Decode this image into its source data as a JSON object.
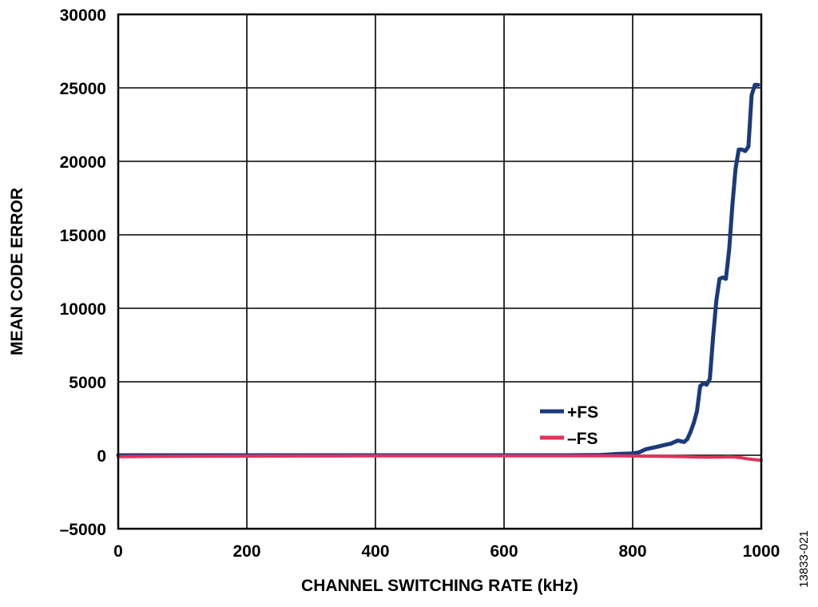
{
  "chart_data": {
    "type": "line",
    "title": "",
    "xlabel": "CHANNEL SWITCHING RATE (kHz)",
    "ylabel": "MEAN CODE ERROR",
    "xlim": [
      0,
      1000
    ],
    "ylim": [
      -5000,
      30000
    ],
    "xticks": [
      0,
      200,
      400,
      600,
      800,
      1000
    ],
    "xtick_labels": [
      "0",
      "200",
      "400",
      "600",
      "800",
      "1000"
    ],
    "yticks": [
      -5000,
      0,
      5000,
      10000,
      15000,
      20000,
      25000,
      30000
    ],
    "ytick_labels": [
      "–5000",
      "0",
      "5000",
      "10000",
      "15000",
      "20000",
      "25000",
      "30000"
    ],
    "grid": true,
    "legend_position": "lower-right (inside plot)",
    "figure_id": "13833-021",
    "series": [
      {
        "name": "+FS",
        "color": "#1b3a7a",
        "x": [
          0,
          50,
          100,
          200,
          300,
          400,
          500,
          600,
          650,
          700,
          750,
          780,
          800,
          810,
          820,
          830,
          840,
          850,
          860,
          865,
          870,
          875,
          880,
          885,
          890,
          895,
          900,
          905,
          910,
          915,
          920,
          925,
          930,
          935,
          940,
          945,
          950,
          955,
          960,
          965,
          970,
          975,
          980,
          985,
          990,
          995
        ],
        "y": [
          0,
          0,
          0,
          0,
          0,
          0,
          0,
          0,
          0,
          0,
          20,
          100,
          120,
          200,
          400,
          500,
          600,
          700,
          800,
          900,
          1000,
          950,
          900,
          1100,
          1600,
          2200,
          3000,
          4700,
          4900,
          4800,
          5200,
          8000,
          10500,
          12000,
          12100,
          12000,
          14000,
          17000,
          19500,
          20800,
          20800,
          20700,
          21000,
          24500,
          25200,
          25200
        ]
      },
      {
        "name": "–FS",
        "color": "#e0335a",
        "x": [
          0,
          100,
          200,
          300,
          400,
          500,
          600,
          650,
          700,
          750,
          780,
          800,
          820,
          840,
          860,
          880,
          900,
          920,
          940,
          950,
          960,
          970,
          980,
          990,
          1000
        ],
        "y": [
          -100,
          -70,
          -60,
          -50,
          -40,
          -40,
          -40,
          -40,
          -40,
          -40,
          -40,
          -50,
          -60,
          -70,
          -80,
          -100,
          -120,
          -130,
          -120,
          -110,
          -130,
          -180,
          -250,
          -300,
          -350
        ]
      }
    ]
  }
}
